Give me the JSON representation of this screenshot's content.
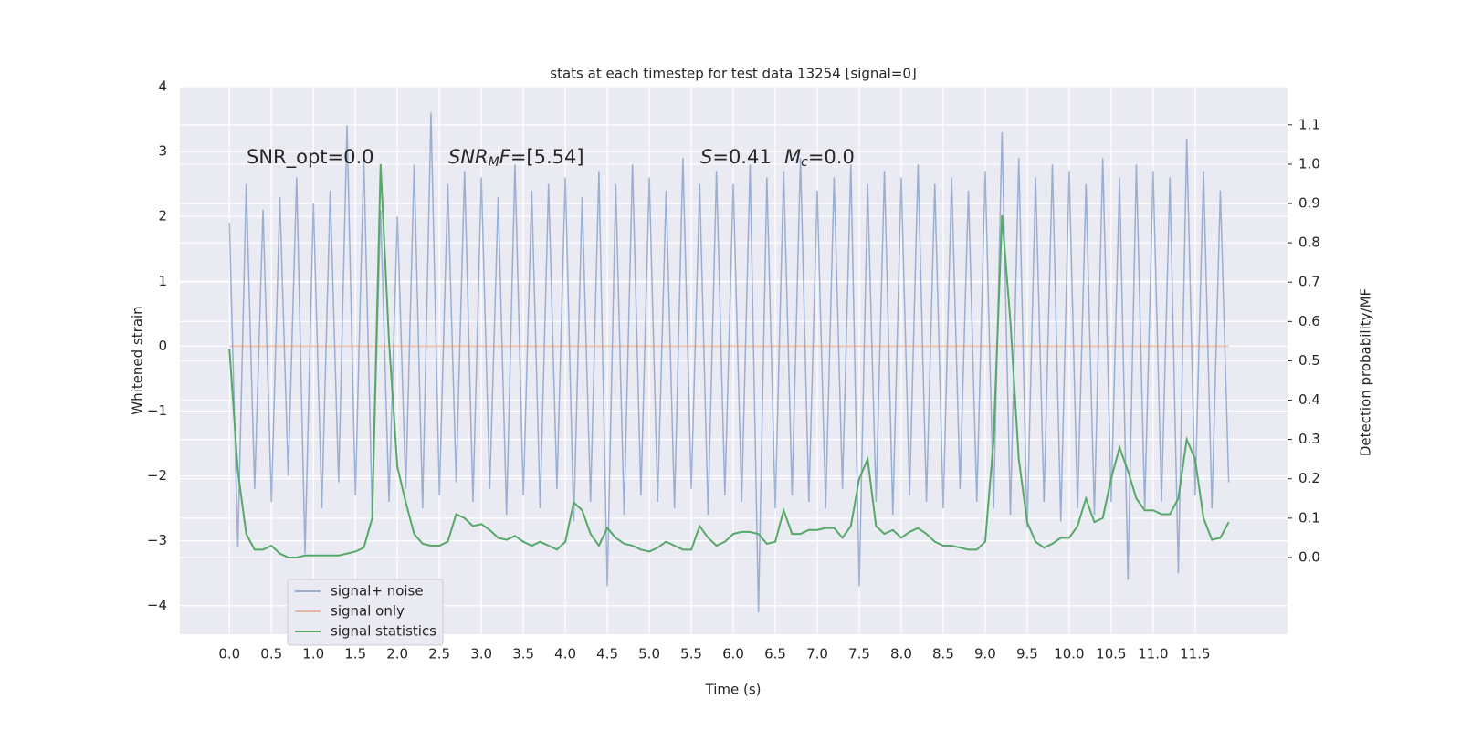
{
  "chart_data": {
    "type": "line",
    "title": "stats at each timestep for test data 13254 [signal=0]",
    "xlabel": "Time (s)",
    "ylabel": "Whitened strain",
    "y2label": "Detection probability/MF",
    "annotations": [
      {
        "parts": [
          {
            "text": "SNR_opt=0.0",
            "style": "normal"
          }
        ]
      },
      {
        "parts": [
          {
            "text": "SNR",
            "style": "italic"
          },
          {
            "text": "M",
            "style": "italic-sub"
          },
          {
            "text": "F",
            "style": "italic"
          },
          {
            "text": "=[5.54]",
            "style": "normal"
          }
        ]
      },
      {
        "parts": [
          {
            "text": "S",
            "style": "italic"
          },
          {
            "text": "=0.41",
            "style": "normal"
          }
        ]
      },
      {
        "parts": [
          {
            "text": "M",
            "style": "italic"
          },
          {
            "text": "c",
            "style": "italic-sub"
          },
          {
            "text": "=0.0",
            "style": "normal"
          }
        ]
      }
    ],
    "x": [
      0.0,
      0.1,
      0.2,
      0.3,
      0.4,
      0.5,
      0.6,
      0.7,
      0.8,
      0.9,
      1.0,
      1.1,
      1.2,
      1.3,
      1.4,
      1.5,
      1.6,
      1.7,
      1.8,
      1.9,
      2.0,
      2.1,
      2.2,
      2.3,
      2.4,
      2.5,
      2.6,
      2.7,
      2.8,
      2.9,
      3.0,
      3.1,
      3.2,
      3.3,
      3.4,
      3.5,
      3.6,
      3.7,
      3.8,
      3.9,
      4.0,
      4.1,
      4.2,
      4.3,
      4.4,
      4.5,
      4.6,
      4.7,
      4.8,
      4.9,
      5.0,
      5.1,
      5.2,
      5.3,
      5.4,
      5.5,
      5.6,
      5.7,
      5.8,
      5.9,
      6.0,
      6.1,
      6.2,
      6.3,
      6.4,
      6.5,
      6.6,
      6.7,
      6.8,
      6.9,
      7.0,
      7.1,
      7.2,
      7.3,
      7.4,
      7.5,
      7.6,
      7.7,
      7.8,
      7.9,
      8.0,
      8.1,
      8.2,
      8.3,
      8.4,
      8.5,
      8.6,
      8.7,
      8.8,
      8.9,
      9.0,
      9.1,
      9.2,
      9.3,
      9.4,
      9.5,
      9.6,
      9.7,
      9.8,
      9.9,
      10.0,
      10.1,
      10.2,
      10.3,
      10.4,
      10.5,
      10.6,
      10.7,
      10.8,
      10.9,
      11.0,
      11.1,
      11.2,
      11.3,
      11.4,
      11.5,
      11.6,
      11.7,
      11.8,
      11.9
    ],
    "series": [
      {
        "name": "signal+ noise",
        "color": "#4c72b0",
        "opacity": 0.5,
        "axis": "y",
        "values": [
          1.9,
          -3.1,
          2.5,
          -2.2,
          2.1,
          -2.4,
          2.3,
          -2.0,
          2.6,
          -3.2,
          2.2,
          -2.5,
          2.4,
          -2.1,
          3.4,
          -2.3,
          2.9,
          -2.6,
          2.1,
          -2.4,
          2.0,
          -2.2,
          2.8,
          -2.5,
          3.6,
          -2.3,
          2.5,
          -2.1,
          2.7,
          -2.4,
          2.6,
          -2.2,
          2.3,
          -2.6,
          2.8,
          -2.3,
          2.4,
          -2.5,
          2.5,
          -2.2,
          2.6,
          -2.7,
          2.3,
          -2.4,
          2.7,
          -3.7,
          2.5,
          -2.6,
          2.8,
          -2.3,
          2.6,
          -2.4,
          2.4,
          -2.5,
          2.9,
          -2.2,
          2.5,
          -2.6,
          2.7,
          -2.3,
          2.5,
          -2.4,
          2.8,
          -4.1,
          2.6,
          -2.5,
          2.7,
          -2.3,
          2.9,
          -2.4,
          2.4,
          -2.5,
          2.6,
          -2.2,
          2.8,
          -3.7,
          2.5,
          -2.4,
          2.7,
          -2.6,
          2.6,
          -2.3,
          2.8,
          -2.4,
          2.5,
          -2.5,
          2.6,
          -2.2,
          2.4,
          -2.4,
          2.7,
          -2.5,
          3.3,
          -2.6,
          2.9,
          -2.8,
          2.6,
          -2.4,
          2.8,
          -2.7,
          2.7,
          -2.5,
          2.5,
          -2.6,
          2.9,
          -2.4,
          2.6,
          -3.6,
          2.8,
          -2.5,
          2.7,
          -2.4,
          2.6,
          -3.5,
          3.2,
          -2.3,
          2.7,
          -2.5,
          2.4,
          -2.1
        ]
      },
      {
        "name": "signal only",
        "color": "#dd8452",
        "opacity": 0.5,
        "axis": "y",
        "values": [
          0,
          0,
          0,
          0,
          0,
          0,
          0,
          0,
          0,
          0,
          0,
          0,
          0,
          0,
          0,
          0,
          0,
          0,
          0,
          0,
          0,
          0,
          0,
          0,
          0,
          0,
          0,
          0,
          0,
          0,
          0,
          0,
          0,
          0,
          0,
          0,
          0,
          0,
          0,
          0,
          0,
          0,
          0,
          0,
          0,
          0,
          0,
          0,
          0,
          0,
          0,
          0,
          0,
          0,
          0,
          0,
          0,
          0,
          0,
          0,
          0,
          0,
          0,
          0,
          0,
          0,
          0,
          0,
          0,
          0,
          0,
          0,
          0,
          0,
          0,
          0,
          0,
          0,
          0,
          0,
          0,
          0,
          0,
          0,
          0,
          0,
          0,
          0,
          0,
          0,
          0,
          0,
          0,
          0,
          0,
          0,
          0,
          0,
          0,
          0,
          0,
          0,
          0,
          0,
          0,
          0,
          0,
          0,
          0,
          0,
          0,
          0,
          0,
          0,
          0,
          0,
          0,
          0,
          0,
          0
        ]
      },
      {
        "name": "signal statistics",
        "color": "#55a868",
        "opacity": 1,
        "axis": "y2",
        "values": [
          0.53,
          0.22,
          0.06,
          0.02,
          0.02,
          0.03,
          0.01,
          0.0,
          0.0,
          0.005,
          0.005,
          0.005,
          0.005,
          0.005,
          0.01,
          0.015,
          0.025,
          0.1,
          1.0,
          0.55,
          0.23,
          0.14,
          0.06,
          0.035,
          0.03,
          0.03,
          0.04,
          0.11,
          0.1,
          0.08,
          0.085,
          0.07,
          0.05,
          0.045,
          0.055,
          0.04,
          0.03,
          0.04,
          0.03,
          0.02,
          0.04,
          0.14,
          0.12,
          0.06,
          0.03,
          0.075,
          0.05,
          0.035,
          0.03,
          0.02,
          0.015,
          0.025,
          0.04,
          0.03,
          0.02,
          0.02,
          0.08,
          0.05,
          0.03,
          0.04,
          0.06,
          0.065,
          0.065,
          0.06,
          0.035,
          0.04,
          0.12,
          0.06,
          0.06,
          0.07,
          0.07,
          0.075,
          0.075,
          0.05,
          0.08,
          0.2,
          0.25,
          0.08,
          0.06,
          0.07,
          0.05,
          0.065,
          0.075,
          0.06,
          0.04,
          0.03,
          0.03,
          0.025,
          0.02,
          0.02,
          0.04,
          0.3,
          0.87,
          0.6,
          0.25,
          0.09,
          0.04,
          0.025,
          0.035,
          0.05,
          0.05,
          0.08,
          0.15,
          0.09,
          0.1,
          0.2,
          0.28,
          0.22,
          0.15,
          0.12,
          0.12,
          0.11,
          0.11,
          0.15,
          0.3,
          0.25,
          0.1,
          0.045,
          0.05,
          0.09
        ]
      }
    ],
    "xlim": [
      -0.59,
      12.6
    ],
    "xticks": [
      {
        "value": 0,
        "label": "0.0"
      },
      0.5,
      {
        "value": 1,
        "label": "1.0"
      },
      1.5,
      {
        "value": 2,
        "label": "2.0"
      },
      2.5,
      {
        "value": 3,
        "label": "3.0"
      },
      3.5,
      {
        "value": 4,
        "label": "4.0"
      },
      4.5,
      {
        "value": 5,
        "label": "5.0"
      },
      5.5,
      {
        "value": 6,
        "label": "6.0"
      },
      6.5,
      {
        "value": 7,
        "label": "7.0"
      },
      7.5,
      {
        "value": 8,
        "label": "8.0"
      },
      8.5,
      {
        "value": 9,
        "label": "9.0"
      },
      9.5,
      {
        "value": 10,
        "label": "10.0"
      },
      10.5,
      {
        "value": 11,
        "label": "11.0"
      },
      11.5
    ],
    "ylim": [
      -4.44,
      4.0
    ],
    "yticks": [
      {
        "value": -4,
        "label": "−4"
      },
      {
        "value": -3,
        "label": "−3"
      },
      {
        "value": -2,
        "label": "−2"
      },
      {
        "value": -1,
        "label": "−1"
      },
      0,
      1,
      2,
      3,
      4
    ],
    "y2lim": [
      -0.195,
      1.197
    ],
    "y2ticks": [
      {
        "value": 0,
        "label": "0.0"
      },
      0.1,
      0.2,
      0.3,
      0.4,
      0.5,
      0.6,
      0.7,
      0.8,
      0.9,
      {
        "value": 1,
        "label": "1.0"
      },
      1.1
    ],
    "grid": true,
    "legend": "lower left",
    "background": "#eaeaf2"
  }
}
